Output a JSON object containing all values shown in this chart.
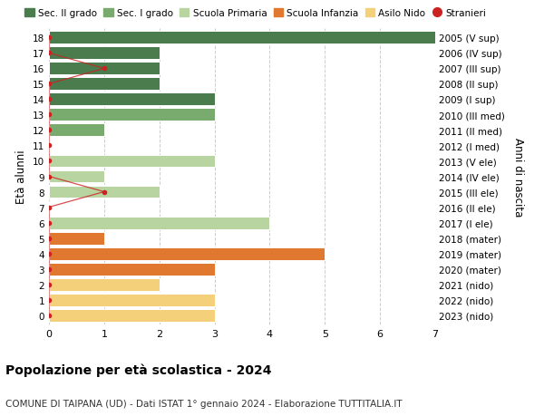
{
  "ages": [
    18,
    17,
    16,
    15,
    14,
    13,
    12,
    11,
    10,
    9,
    8,
    7,
    6,
    5,
    4,
    3,
    2,
    1,
    0
  ],
  "right_labels": [
    "2005 (V sup)",
    "2006 (IV sup)",
    "2007 (III sup)",
    "2008 (II sup)",
    "2009 (I sup)",
    "2010 (III med)",
    "2011 (II med)",
    "2012 (I med)",
    "2013 (V ele)",
    "2014 (IV ele)",
    "2015 (III ele)",
    "2016 (II ele)",
    "2017 (I ele)",
    "2018 (mater)",
    "2019 (mater)",
    "2020 (mater)",
    "2021 (nido)",
    "2022 (nido)",
    "2023 (nido)"
  ],
  "bar_values": [
    7,
    2,
    2,
    2,
    3,
    3,
    1,
    0,
    3,
    1,
    2,
    0,
    4,
    1,
    5,
    3,
    2,
    3,
    3
  ],
  "bar_colors": [
    "#4a7c4e",
    "#4a7c4e",
    "#4a7c4e",
    "#4a7c4e",
    "#4a7c4e",
    "#7aab6e",
    "#7aab6e",
    "#7aab6e",
    "#b8d4a0",
    "#b8d4a0",
    "#b8d4a0",
    "#b8d4a0",
    "#b8d4a0",
    "#e07830",
    "#e07830",
    "#e07830",
    "#f5d07a",
    "#f5d07a",
    "#f5d07a"
  ],
  "stranieri_x": [
    0,
    0,
    1,
    0,
    0,
    0,
    0,
    0,
    0,
    0,
    1,
    0,
    0,
    0,
    0,
    0,
    0,
    0,
    0
  ],
  "legend_labels": [
    "Sec. II grado",
    "Sec. I grado",
    "Scuola Primaria",
    "Scuola Infanzia",
    "Asilo Nido",
    "Stranieri"
  ],
  "legend_colors": [
    "#4a7c4e",
    "#7aab6e",
    "#b8d4a0",
    "#e07830",
    "#f5d07a",
    "#cc2222"
  ],
  "title": "Popolazione per età scolastica - 2024",
  "subtitle": "COMUNE DI TAIPANA (UD) - Dati ISTAT 1° gennaio 2024 - Elaborazione TUTTITALIA.IT",
  "ylabel_left": "Età alunni",
  "ylabel_right": "Anni di nascita",
  "xlim": [
    0,
    7
  ],
  "xticks": [
    0,
    1,
    2,
    3,
    4,
    5,
    6,
    7
  ],
  "background_color": "#ffffff",
  "grid_color": "#cccccc"
}
